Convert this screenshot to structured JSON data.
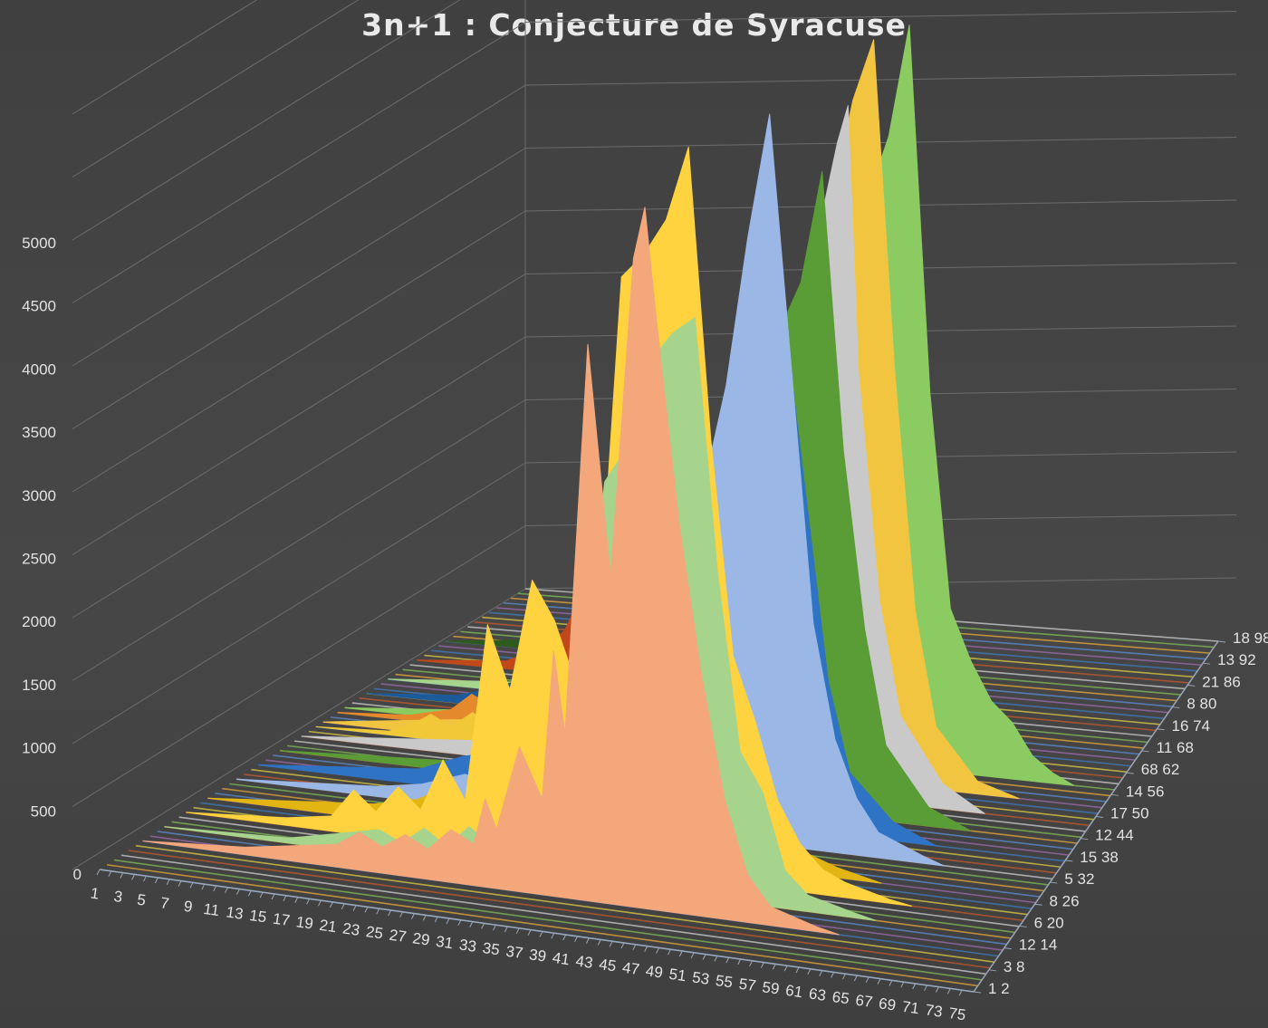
{
  "chart_data": {
    "type": "area",
    "title": "3n+1 : Conjecture de Syracuse",
    "xlabel": "",
    "ylabel": "",
    "ylim": [
      0,
      6000
    ],
    "y_ticks": [
      "0",
      "500",
      "1000",
      "1500",
      "2000",
      "2500",
      "3000",
      "3500",
      "4000",
      "4500",
      "5000"
    ],
    "x_ticks": [
      "1",
      "3",
      "5",
      "7",
      "9",
      "11",
      "13",
      "15",
      "17",
      "19",
      "21",
      "23",
      "25",
      "27",
      "29",
      "31",
      "33",
      "35",
      "37",
      "39",
      "41",
      "43",
      "45",
      "47",
      "49",
      "51",
      "53",
      "55",
      "57",
      "59",
      "61",
      "63",
      "65",
      "67",
      "69",
      "71",
      "73",
      "75"
    ],
    "depth_ticks": [
      "1 2",
      "3 8",
      "12 14",
      "6 20",
      "8 26",
      "5 32",
      "15 38",
      "12 44",
      "17 50",
      "14 56",
      "68 62",
      "11 68",
      "16 74",
      "8 80",
      "21 86",
      "13 92",
      "18 98"
    ],
    "grid": true,
    "legend": "none",
    "series": [
      {
        "color": "#f4a77b",
        "peak_x": 45,
        "values": [
          [
            1,
            0
          ],
          [
            10,
            60
          ],
          [
            18,
            180
          ],
          [
            20,
            300
          ],
          [
            22,
            210
          ],
          [
            24,
            330
          ],
          [
            26,
            240
          ],
          [
            28,
            420
          ],
          [
            30,
            330
          ],
          [
            31,
            700
          ],
          [
            32,
            470
          ],
          [
            34,
            1150
          ],
          [
            36,
            760
          ],
          [
            37,
            1950
          ],
          [
            38,
            1300
          ],
          [
            40,
            4420
          ],
          [
            42,
            2600
          ],
          [
            44,
            5150
          ],
          [
            45,
            5570
          ],
          [
            46,
            4700
          ],
          [
            48,
            3100
          ],
          [
            50,
            1900
          ],
          [
            52,
            950
          ],
          [
            54,
            380
          ],
          [
            56,
            150
          ],
          [
            60,
            40
          ],
          [
            62,
            0
          ]
        ]
      },
      {
        "color": "#a7d48c",
        "peak_x": 48,
        "values": [
          [
            1,
            0
          ],
          [
            12,
            40
          ],
          [
            16,
            120
          ],
          [
            20,
            200
          ],
          [
            22,
            120
          ],
          [
            24,
            260
          ],
          [
            26,
            140
          ],
          [
            28,
            320
          ],
          [
            30,
            180
          ],
          [
            32,
            540
          ],
          [
            34,
            600
          ],
          [
            36,
            780
          ],
          [
            38,
            1500
          ],
          [
            40,
            3200
          ],
          [
            42,
            3500
          ],
          [
            44,
            4200
          ],
          [
            46,
            4450
          ],
          [
            48,
            4600
          ],
          [
            50,
            2600
          ],
          [
            52,
            1200
          ],
          [
            54,
            900
          ],
          [
            56,
            300
          ],
          [
            58,
            130
          ],
          [
            62,
            40
          ],
          [
            64,
            0
          ]
        ]
      },
      {
        "color": "#ffd33f",
        "peak_x": 46,
        "values": [
          [
            1,
            0
          ],
          [
            10,
            60
          ],
          [
            14,
            120
          ],
          [
            16,
            350
          ],
          [
            18,
            200
          ],
          [
            20,
            420
          ],
          [
            22,
            260
          ],
          [
            24,
            680
          ],
          [
            26,
            380
          ],
          [
            28,
            1800
          ],
          [
            30,
            1300
          ],
          [
            32,
            2200
          ],
          [
            34,
            1900
          ],
          [
            36,
            1400
          ],
          [
            38,
            2000
          ],
          [
            40,
            4700
          ],
          [
            42,
            4900
          ],
          [
            44,
            5200
          ],
          [
            46,
            5800
          ],
          [
            48,
            3500
          ],
          [
            50,
            1800
          ],
          [
            52,
            1300
          ],
          [
            54,
            700
          ],
          [
            56,
            380
          ],
          [
            58,
            200
          ],
          [
            60,
            120
          ],
          [
            64,
            30
          ],
          [
            66,
            0
          ]
        ]
      },
      {
        "color": "#e2b512",
        "peak_x": 44,
        "values": [
          [
            1,
            0
          ],
          [
            16,
            120
          ],
          [
            20,
            200
          ],
          [
            22,
            300
          ],
          [
            24,
            200
          ],
          [
            26,
            500
          ],
          [
            28,
            380
          ],
          [
            30,
            600
          ],
          [
            32,
            800
          ],
          [
            34,
            1500
          ],
          [
            36,
            1700
          ],
          [
            38,
            3200
          ],
          [
            40,
            3800
          ],
          [
            42,
            4100
          ],
          [
            44,
            4450
          ],
          [
            46,
            2500
          ],
          [
            48,
            1500
          ],
          [
            50,
            900
          ],
          [
            52,
            600
          ],
          [
            54,
            200
          ],
          [
            58,
            80
          ],
          [
            62,
            0
          ]
        ]
      },
      {
        "color": "#9ab7e6",
        "peak_x": 50,
        "values": [
          [
            1,
            0
          ],
          [
            14,
            80
          ],
          [
            18,
            140
          ],
          [
            22,
            260
          ],
          [
            26,
            180
          ],
          [
            28,
            420
          ],
          [
            30,
            320
          ],
          [
            32,
            550
          ],
          [
            34,
            900
          ],
          [
            36,
            600
          ],
          [
            38,
            1200
          ],
          [
            40,
            1400
          ],
          [
            42,
            1800
          ],
          [
            44,
            2800
          ],
          [
            46,
            3600
          ],
          [
            48,
            4800
          ],
          [
            50,
            5800
          ],
          [
            52,
            3800
          ],
          [
            54,
            1800
          ],
          [
            56,
            900
          ],
          [
            58,
            450
          ],
          [
            60,
            200
          ],
          [
            64,
            60
          ],
          [
            66,
            0
          ]
        ]
      },
      {
        "color": "#2f73c4",
        "peak_x": 50,
        "values": [
          [
            1,
            0
          ],
          [
            16,
            120
          ],
          [
            20,
            260
          ],
          [
            24,
            350
          ],
          [
            28,
            500
          ],
          [
            30,
            300
          ],
          [
            32,
            600
          ],
          [
            34,
            700
          ],
          [
            36,
            900
          ],
          [
            40,
            1300
          ],
          [
            44,
            2600
          ],
          [
            46,
            3000
          ],
          [
            48,
            3400
          ],
          [
            50,
            4000
          ],
          [
            52,
            2600
          ],
          [
            54,
            1200
          ],
          [
            56,
            500
          ],
          [
            60,
            150
          ],
          [
            64,
            0
          ]
        ]
      },
      {
        "color": "#5a9c35",
        "peak_x": 52,
        "values": [
          [
            1,
            0
          ],
          [
            18,
            80
          ],
          [
            22,
            200
          ],
          [
            26,
            350
          ],
          [
            30,
            500
          ],
          [
            32,
            700
          ],
          [
            34,
            400
          ],
          [
            36,
            800
          ],
          [
            38,
            1000
          ],
          [
            40,
            1600
          ],
          [
            42,
            2200
          ],
          [
            44,
            2800
          ],
          [
            46,
            3400
          ],
          [
            48,
            3800
          ],
          [
            50,
            4200
          ],
          [
            52,
            5100
          ],
          [
            54,
            2900
          ],
          [
            56,
            1500
          ],
          [
            58,
            600
          ],
          [
            62,
            150
          ],
          [
            66,
            0
          ]
        ]
      },
      {
        "color": "#c9c9c9",
        "peak_x": 53,
        "values": [
          [
            1,
            0
          ],
          [
            20,
            140
          ],
          [
            24,
            260
          ],
          [
            28,
            380
          ],
          [
            30,
            600
          ],
          [
            32,
            420
          ],
          [
            34,
            700
          ],
          [
            36,
            1000
          ],
          [
            40,
            1700
          ],
          [
            44,
            2600
          ],
          [
            48,
            3800
          ],
          [
            50,
            4400
          ],
          [
            52,
            5200
          ],
          [
            53,
            5500
          ],
          [
            54,
            3400
          ],
          [
            56,
            1600
          ],
          [
            58,
            700
          ],
          [
            62,
            200
          ],
          [
            66,
            0
          ]
        ]
      },
      {
        "color": "#f2c540",
        "peak_x": 54,
        "values": [
          [
            1,
            0
          ],
          [
            20,
            200
          ],
          [
            24,
            380
          ],
          [
            28,
            520
          ],
          [
            30,
            320
          ],
          [
            32,
            700
          ],
          [
            34,
            500
          ],
          [
            36,
            900
          ],
          [
            38,
            1300
          ],
          [
            42,
            2400
          ],
          [
            46,
            3500
          ],
          [
            50,
            4600
          ],
          [
            52,
            5400
          ],
          [
            54,
            5900
          ],
          [
            56,
            3300
          ],
          [
            58,
            1400
          ],
          [
            60,
            500
          ],
          [
            64,
            100
          ],
          [
            68,
            0
          ]
        ]
      },
      {
        "color": "#8ccb62",
        "peak_x": 56,
        "values": [
          [
            1,
            0
          ],
          [
            22,
            150
          ],
          [
            26,
            300
          ],
          [
            30,
            500
          ],
          [
            34,
            800
          ],
          [
            38,
            1200
          ],
          [
            42,
            1900
          ],
          [
            46,
            2900
          ],
          [
            50,
            3900
          ],
          [
            52,
            4500
          ],
          [
            54,
            5000
          ],
          [
            56,
            5900
          ],
          [
            58,
            3000
          ],
          [
            60,
            1300
          ],
          [
            62,
            900
          ],
          [
            64,
            600
          ],
          [
            66,
            450
          ],
          [
            68,
            200
          ],
          [
            70,
            80
          ],
          [
            72,
            0
          ]
        ]
      },
      {
        "color": "#c0481a",
        "peak_x": 20,
        "values": [
          [
            1,
            0
          ],
          [
            10,
            60
          ],
          [
            14,
            200
          ],
          [
            16,
            350
          ],
          [
            18,
            700
          ],
          [
            19,
            1100
          ],
          [
            20,
            1350
          ],
          [
            21,
            900
          ],
          [
            22,
            500
          ],
          [
            24,
            350
          ],
          [
            26,
            200
          ],
          [
            30,
            80
          ],
          [
            34,
            0
          ]
        ]
      },
      {
        "color": "#2e5a1e",
        "peak_x": 34,
        "values": [
          [
            1,
            0
          ],
          [
            16,
            120
          ],
          [
            20,
            300
          ],
          [
            24,
            450
          ],
          [
            28,
            700
          ],
          [
            30,
            900
          ],
          [
            32,
            1200
          ],
          [
            34,
            1900
          ],
          [
            36,
            1400
          ],
          [
            38,
            900
          ],
          [
            40,
            500
          ],
          [
            44,
            200
          ],
          [
            48,
            0
          ]
        ]
      },
      {
        "color": "#a7d48c",
        "peak_x": 30,
        "values": [
          [
            1,
            0
          ],
          [
            14,
            80
          ],
          [
            18,
            200
          ],
          [
            22,
            350
          ],
          [
            26,
            500
          ],
          [
            28,
            700
          ],
          [
            30,
            900
          ],
          [
            32,
            650
          ],
          [
            34,
            800
          ],
          [
            36,
            500
          ],
          [
            40,
            250
          ],
          [
            44,
            100
          ],
          [
            48,
            0
          ]
        ]
      },
      {
        "color": "#1c5b9a",
        "peak_x": 24,
        "values": [
          [
            1,
            0
          ],
          [
            10,
            60
          ],
          [
            14,
            160
          ],
          [
            18,
            300
          ],
          [
            20,
            420
          ],
          [
            22,
            250
          ],
          [
            24,
            600
          ],
          [
            26,
            380
          ],
          [
            28,
            300
          ],
          [
            32,
            140
          ],
          [
            36,
            0
          ]
        ]
      },
      {
        "color": "#e58a2c",
        "peak_x": 18,
        "values": [
          [
            1,
            0
          ],
          [
            8,
            40
          ],
          [
            12,
            120
          ],
          [
            14,
            260
          ],
          [
            16,
            180
          ],
          [
            18,
            380
          ],
          [
            20,
            260
          ],
          [
            22,
            200
          ],
          [
            26,
            80
          ],
          [
            30,
            0
          ]
        ]
      },
      {
        "color": "#f0c838",
        "peak_x": 16,
        "values": [
          [
            1,
            0
          ],
          [
            8,
            30
          ],
          [
            10,
            90
          ],
          [
            12,
            200
          ],
          [
            14,
            120
          ],
          [
            16,
            250
          ],
          [
            18,
            160
          ],
          [
            20,
            120
          ],
          [
            24,
            40
          ],
          [
            28,
            0
          ]
        ]
      }
    ]
  }
}
